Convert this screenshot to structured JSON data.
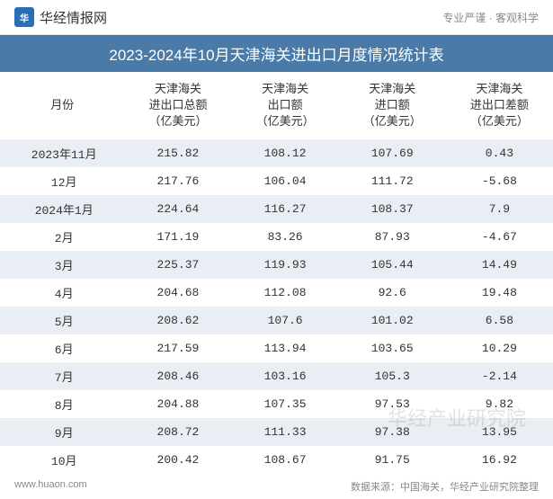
{
  "header": {
    "brand_logo_text": "华",
    "brand_name": "华经情报网",
    "tagline": "专业严谨 · 客观科学"
  },
  "title": "2023-2024年10月天津海关进出口月度情况统计表",
  "table": {
    "columns": [
      "月份",
      "天津海关\n进出口总额\n（亿美元）",
      "天津海关\n出口额\n（亿美元）",
      "天津海关\n进口额\n（亿美元）",
      "天津海关\n进出口差额\n（亿美元）"
    ],
    "rows": [
      {
        "month": "2023年11月",
        "total": "215.82",
        "export": "108.12",
        "import": "107.69",
        "diff": "0.43",
        "neg": false
      },
      {
        "month": "12月",
        "total": "217.76",
        "export": "106.04",
        "import": "111.72",
        "diff": "-5.68",
        "neg": true
      },
      {
        "month": "2024年1月",
        "total": "224.64",
        "export": "116.27",
        "import": "108.37",
        "diff": "7.9",
        "neg": false
      },
      {
        "month": "2月",
        "total": "171.19",
        "export": "83.26",
        "import": "87.93",
        "diff": "-4.67",
        "neg": true
      },
      {
        "month": "3月",
        "total": "225.37",
        "export": "119.93",
        "import": "105.44",
        "diff": "14.49",
        "neg": false
      },
      {
        "month": "4月",
        "total": "204.68",
        "export": "112.08",
        "import": "92.6",
        "diff": "19.48",
        "neg": false
      },
      {
        "month": "5月",
        "total": "208.62",
        "export": "107.6",
        "import": "101.02",
        "diff": "6.58",
        "neg": false
      },
      {
        "month": "6月",
        "total": "217.59",
        "export": "113.94",
        "import": "103.65",
        "diff": "10.29",
        "neg": false
      },
      {
        "month": "7月",
        "total": "208.46",
        "export": "103.16",
        "import": "105.3",
        "diff": "-2.14",
        "neg": true
      },
      {
        "month": "8月",
        "total": "204.88",
        "export": "107.35",
        "import": "97.53",
        "diff": "9.82",
        "neg": false
      },
      {
        "month": "9月",
        "total": "208.72",
        "export": "111.33",
        "import": "97.38",
        "diff": "13.95",
        "neg": false
      },
      {
        "month": "10月",
        "total": "200.42",
        "export": "108.67",
        "import": "91.75",
        "diff": "16.92",
        "neg": false
      }
    ]
  },
  "footer": {
    "site": "www.huaon.com",
    "source": "数据来源：中国海关，华经产业研究院整理"
  },
  "watermark": "华经产业研究院",
  "styling": {
    "title_bg": "#4a7ba8",
    "row_stripe": "#e8eef4",
    "negative_color": "#3a8bc4",
    "text_color": "#333333",
    "header_font_size": 13,
    "cell_font_size": 13,
    "title_font_size": 17
  }
}
